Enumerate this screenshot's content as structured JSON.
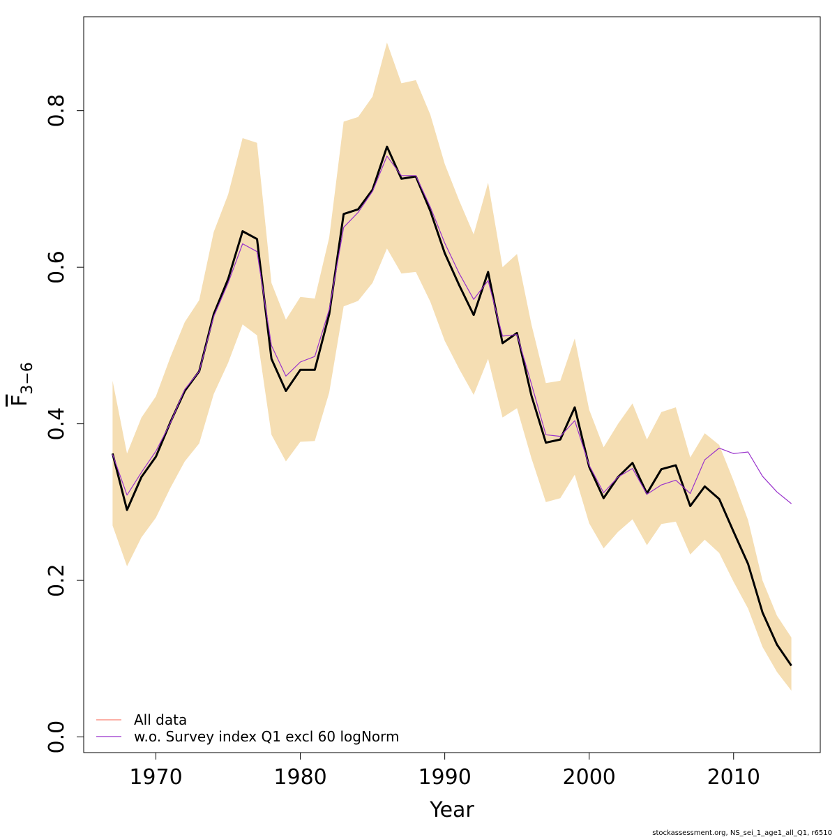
{
  "chart_data": {
    "type": "line",
    "title": "",
    "xlabel": "Year",
    "ylabel": {
      "base": "F",
      "subscript": "3−6"
    },
    "xlim": [
      1965,
      2016
    ],
    "ylim": [
      -0.02,
      0.92
    ],
    "xticks": [
      1970,
      1980,
      1990,
      2000,
      2010
    ],
    "yticks": [
      0.0,
      0.2,
      0.4,
      0.6,
      0.8
    ],
    "ytick_labels": [
      "0.0",
      "0.2",
      "0.4",
      "0.6",
      "0.8"
    ],
    "grid": false,
    "legend_position": "bottom-left",
    "x": [
      1967,
      1968,
      1969,
      1970,
      1971,
      1972,
      1973,
      1974,
      1975,
      1976,
      1977,
      1978,
      1979,
      1980,
      1981,
      1982,
      1983,
      1984,
      1985,
      1986,
      1987,
      1988,
      1989,
      1990,
      1991,
      1992,
      1993,
      1994,
      1995,
      1996,
      1997,
      1998,
      1999,
      2000,
      2001,
      2002,
      2003,
      2004,
      2005,
      2006,
      2007,
      2008,
      2009,
      2010,
      2011,
      2012,
      2013,
      2014
    ],
    "band": {
      "color": "#f5deb3",
      "upper": [
        0.455,
        0.362,
        0.408,
        0.435,
        0.485,
        0.53,
        0.558,
        0.645,
        0.693,
        0.765,
        0.759,
        0.58,
        0.533,
        0.562,
        0.56,
        0.638,
        0.786,
        0.792,
        0.818,
        0.887,
        0.835,
        0.839,
        0.795,
        0.732,
        0.685,
        0.642,
        0.708,
        0.6,
        0.617,
        0.527,
        0.452,
        0.455,
        0.509,
        0.418,
        0.37,
        0.4,
        0.426,
        0.38,
        0.415,
        0.421,
        0.357,
        0.388,
        0.373,
        0.327,
        0.277,
        0.2,
        0.155,
        0.127
      ],
      "lower": [
        0.27,
        0.218,
        0.255,
        0.28,
        0.318,
        0.352,
        0.375,
        0.438,
        0.478,
        0.527,
        0.513,
        0.386,
        0.352,
        0.377,
        0.378,
        0.44,
        0.55,
        0.557,
        0.58,
        0.624,
        0.592,
        0.594,
        0.556,
        0.506,
        0.47,
        0.437,
        0.483,
        0.408,
        0.42,
        0.356,
        0.3,
        0.305,
        0.335,
        0.273,
        0.241,
        0.262,
        0.278,
        0.245,
        0.272,
        0.275,
        0.233,
        0.252,
        0.235,
        0.198,
        0.164,
        0.115,
        0.083,
        0.059
      ]
    },
    "series": [
      {
        "name": "All data",
        "color": "#fa8072",
        "values": [
          0.362,
          0.29,
          0.332,
          0.358,
          0.402,
          0.442,
          0.467,
          0.54,
          0.585,
          0.646,
          0.636,
          0.483,
          0.442,
          0.469,
          0.469,
          0.54,
          0.668,
          0.674,
          0.699,
          0.754,
          0.713,
          0.716,
          0.672,
          0.618,
          0.577,
          0.539,
          0.594,
          0.503,
          0.516,
          0.436,
          0.376,
          0.38,
          0.421,
          0.345,
          0.305,
          0.332,
          0.35,
          0.311,
          0.342,
          0.347,
          0.295,
          0.32,
          0.304,
          0.262,
          0.221,
          0.159,
          0.118,
          0.091
        ]
      },
      {
        "name": "w.o. Survey index Q1 excl 60 logNorm",
        "color": "#9932cc",
        "values": [
          0.361,
          0.309,
          0.338,
          0.365,
          0.401,
          0.444,
          0.467,
          0.537,
          0.58,
          0.63,
          0.62,
          0.5,
          0.461,
          0.479,
          0.486,
          0.546,
          0.651,
          0.67,
          0.697,
          0.742,
          0.717,
          0.717,
          0.677,
          0.631,
          0.592,
          0.559,
          0.583,
          0.512,
          0.514,
          0.451,
          0.386,
          0.384,
          0.404,
          0.347,
          0.312,
          0.332,
          0.343,
          0.31,
          0.322,
          0.328,
          0.311,
          0.354,
          0.369,
          0.362,
          0.364,
          0.333,
          0.313,
          0.298
        ]
      }
    ]
  },
  "footer": {
    "note": "stockassessment.org, NS_sei_1_age1_all_Q1, r6510"
  }
}
